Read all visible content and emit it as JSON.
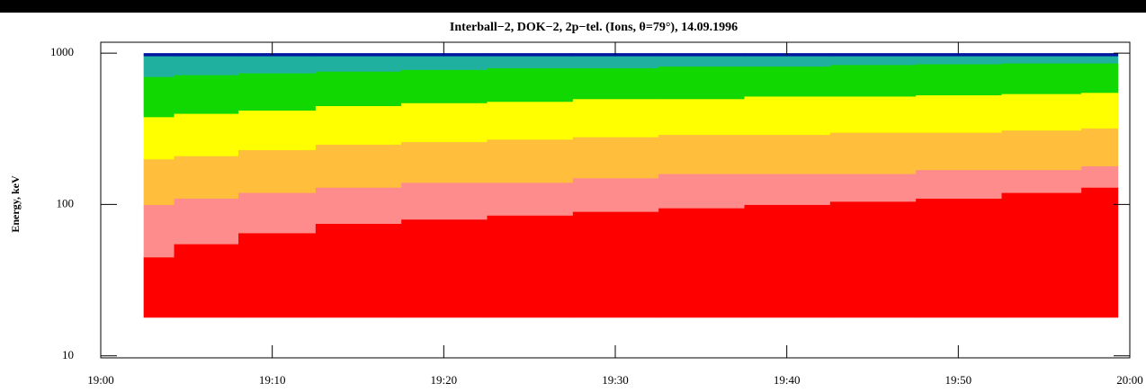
{
  "chart_data": {
    "type": "spectrogram",
    "title": "Interball−2, DOK−2, 2p−tel. (Ions, θ=79°),   14.09.1996",
    "y_label": "Energy, keV",
    "log_y": true,
    "xlim": [
      0,
      60
    ],
    "xticks": [
      {
        "value": 0,
        "label": "19:00"
      },
      {
        "value": 10,
        "label": "19:10"
      },
      {
        "value": 20,
        "label": "19:20"
      },
      {
        "value": 30,
        "label": "19:30"
      },
      {
        "value": 40,
        "label": "19:40"
      },
      {
        "value": 50,
        "label": "19:50"
      },
      {
        "value": 60,
        "label": "20:00"
      }
    ],
    "ylim": [
      9.7,
      1180
    ],
    "yticks": [
      10,
      100,
      1000
    ],
    "ybase": 18,
    "x": [
      2.5,
      6,
      10,
      15,
      20,
      25,
      30,
      35,
      40,
      45,
      50,
      55,
      59.3
    ],
    "series": [
      {
        "color": "#ff0000",
        "values": [
          45,
          55,
          65,
          75,
          80,
          85,
          90,
          95,
          100,
          105,
          110,
          120,
          130
        ]
      },
      {
        "color": "#ff8c8c",
        "values": [
          100,
          110,
          120,
          130,
          140,
          140,
          150,
          160,
          160,
          160,
          170,
          170,
          180
        ]
      },
      {
        "color": "#ffbe3c",
        "values": [
          200,
          210,
          230,
          250,
          260,
          270,
          280,
          290,
          290,
          300,
          300,
          310,
          320
        ]
      },
      {
        "color": "#ffff00",
        "values": [
          380,
          400,
          420,
          450,
          470,
          480,
          500,
          500,
          520,
          520,
          530,
          540,
          550
        ]
      },
      {
        "color": "#10d800",
        "values": [
          700,
          720,
          740,
          760,
          780,
          800,
          800,
          820,
          820,
          840,
          850,
          860,
          860
        ]
      },
      {
        "color": "#20b0a0",
        "values": [
          960,
          960,
          960,
          960,
          960,
          960,
          960,
          960,
          960,
          960,
          960,
          960,
          960
        ]
      },
      {
        "color": "#0018a0",
        "values": [
          1000,
          1000,
          1000,
          1000,
          1000,
          1000,
          1000,
          1000,
          1000,
          1000,
          1000,
          1000,
          1000
        ]
      }
    ]
  }
}
